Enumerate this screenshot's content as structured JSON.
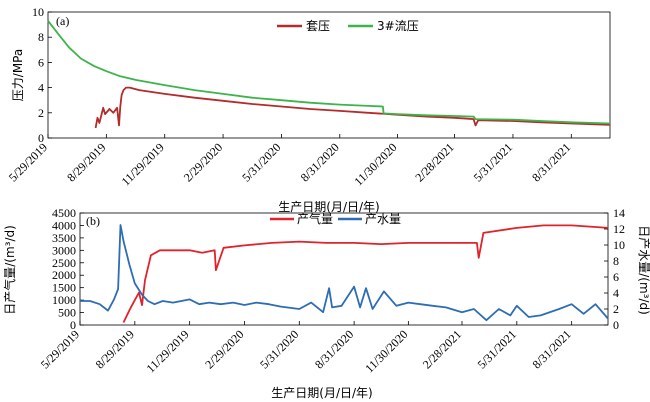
{
  "chart_data": [
    {
      "type": "line",
      "panel_label": "(a)",
      "xlabel": "生产日期(月/日/年)",
      "ylabel": "压力/MPa",
      "ylim": [
        0,
        10
      ],
      "yticks": [
        0,
        2,
        4,
        6,
        8,
        10
      ],
      "xlim": [
        "2019-05-29",
        "2021-10-31"
      ],
      "xticks": [
        "2019-05-29",
        "2019-08-29",
        "2019-11-29",
        "2020-02-29",
        "2020-05-31",
        "2020-08-31",
        "2020-11-30",
        "2021-02-28",
        "2021-05-31",
        "2021-08-31"
      ],
      "xtick_labels": [
        "5/29/2019",
        "8/29/2019",
        "11/29/2019",
        "2/29/2020",
        "5/31/2020",
        "8/31/2020",
        "11/30/2020",
        "2/28/2021",
        "5/31/2021",
        "8/31/2021"
      ],
      "legend_position": "top-center",
      "series": [
        {
          "name": "套压",
          "color": "#b52a2a",
          "x": [
            "2019-08-12",
            "2019-08-15",
            "2019-08-18",
            "2019-08-24",
            "2019-08-27",
            "2019-09-03",
            "2019-09-09",
            "2019-09-15",
            "2019-09-18",
            "2019-09-20",
            "2019-09-22",
            "2019-09-25",
            "2019-09-29",
            "2019-10-05",
            "2019-10-20",
            "2019-11-29",
            "2020-01-15",
            "2020-02-29",
            "2020-04-15",
            "2020-05-31",
            "2020-07-15",
            "2020-08-31",
            "2020-10-15",
            "2020-11-30",
            "2021-01-15",
            "2021-02-28",
            "2021-03-30",
            "2021-04-02",
            "2021-04-06",
            "2021-04-15",
            "2021-05-31",
            "2021-07-15",
            "2021-08-31",
            "2021-10-31"
          ],
          "y": [
            0.8,
            1.6,
            1.2,
            2.4,
            1.9,
            2.3,
            2.0,
            2.4,
            1.0,
            2.5,
            3.4,
            3.8,
            4.0,
            4.0,
            3.8,
            3.5,
            3.2,
            2.95,
            2.7,
            2.5,
            2.3,
            2.15,
            2.0,
            1.85,
            1.7,
            1.6,
            1.5,
            1.0,
            1.4,
            1.4,
            1.35,
            1.25,
            1.15,
            1.05
          ]
        },
        {
          "name": "3#流压",
          "color": "#3db44a",
          "x": [
            "2019-05-29",
            "2019-06-15",
            "2019-07-01",
            "2019-07-20",
            "2019-08-10",
            "2019-08-29",
            "2019-09-20",
            "2019-10-15",
            "2019-11-29",
            "2020-01-15",
            "2020-02-29",
            "2020-04-15",
            "2020-05-31",
            "2020-07-15",
            "2020-08-31",
            "2020-10-15",
            "2020-11-07",
            "2020-11-08",
            "2020-11-30",
            "2021-01-15",
            "2021-02-28",
            "2021-03-30",
            "2021-04-02",
            "2021-05-31",
            "2021-07-15",
            "2021-08-31",
            "2021-10-31"
          ],
          "y": [
            9.3,
            8.2,
            7.2,
            6.3,
            5.7,
            5.3,
            4.9,
            4.6,
            4.2,
            3.8,
            3.5,
            3.2,
            3.0,
            2.8,
            2.65,
            2.55,
            2.5,
            1.95,
            1.9,
            1.8,
            1.75,
            1.7,
            1.5,
            1.45,
            1.35,
            1.25,
            1.15
          ]
        }
      ]
    },
    {
      "type": "line",
      "panel_label": "(b)",
      "xlabel": "生产日期(月/日/年)",
      "ylabel_left": "日产气量/(m³/d)",
      "ylabel_right": "日产水量/(m³/d)",
      "ylim_left": [
        0,
        4500
      ],
      "yticks_left": [
        0,
        500,
        1000,
        1500,
        2000,
        2500,
        3000,
        3500,
        4000,
        4500
      ],
      "ylim_right": [
        0,
        14
      ],
      "yticks_right": [
        0,
        2,
        4,
        6,
        8,
        10,
        12,
        14
      ],
      "xlim": [
        "2019-05-29",
        "2021-10-31"
      ],
      "xticks": [
        "2019-05-29",
        "2019-08-29",
        "2019-11-29",
        "2020-02-29",
        "2020-05-31",
        "2020-08-31",
        "2020-11-30",
        "2021-02-28",
        "2021-05-31",
        "2021-08-31"
      ],
      "xtick_labels": [
        "5/29/2019",
        "8/29/2019",
        "11/29/2019",
        "2/29/2020",
        "5/31/2020",
        "8/31/2020",
        "11/30/2020",
        "2/28/2021",
        "5/31/2021",
        "8/31/2021"
      ],
      "legend_position": "top-center",
      "series": [
        {
          "name": "产气量",
          "color": "#e0232b",
          "axis": "left",
          "x": [
            "2019-08-10",
            "2019-08-20",
            "2019-08-29",
            "2019-09-05",
            "2019-09-10",
            "2019-09-15",
            "2019-09-25",
            "2019-10-10",
            "2019-11-29",
            "2019-12-20",
            "2020-01-10",
            "2020-01-12",
            "2020-01-25",
            "2020-02-29",
            "2020-04-15",
            "2020-05-31",
            "2020-07-15",
            "2020-08-31",
            "2020-10-15",
            "2020-11-30",
            "2021-01-15",
            "2021-02-28",
            "2021-03-25",
            "2021-03-28",
            "2021-04-05",
            "2021-05-31",
            "2021-07-15",
            "2021-08-31",
            "2021-10-31"
          ],
          "y": [
            100,
            600,
            1000,
            1300,
            800,
            1800,
            2800,
            3000,
            3000,
            2900,
            3000,
            2200,
            3100,
            3200,
            3300,
            3350,
            3300,
            3300,
            3250,
            3300,
            3300,
            3300,
            3300,
            2700,
            3700,
            3900,
            4000,
            4000,
            3900
          ]
        },
        {
          "name": "产水量",
          "color": "#2e6db5",
          "axis": "right",
          "x": [
            "2019-05-29",
            "2019-06-15",
            "2019-07-01",
            "2019-07-15",
            "2019-07-25",
            "2019-08-01",
            "2019-08-05",
            "2019-08-10",
            "2019-08-20",
            "2019-08-29",
            "2019-09-10",
            "2019-09-20",
            "2019-10-01",
            "2019-10-15",
            "2019-11-01",
            "2019-11-29",
            "2019-12-15",
            "2020-01-01",
            "2020-01-20",
            "2020-02-10",
            "2020-02-29",
            "2020-03-20",
            "2020-04-10",
            "2020-04-30",
            "2020-05-31",
            "2020-06-20",
            "2020-07-10",
            "2020-07-20",
            "2020-07-25",
            "2020-08-10",
            "2020-08-31",
            "2020-09-10",
            "2020-09-20",
            "2020-10-01",
            "2020-10-20",
            "2020-11-10",
            "2020-11-30",
            "2020-12-20",
            "2021-01-10",
            "2021-02-01",
            "2021-02-28",
            "2021-03-20",
            "2021-04-10",
            "2021-05-01",
            "2021-05-20",
            "2021-05-31",
            "2021-06-20",
            "2021-07-10",
            "2021-08-10",
            "2021-08-31",
            "2021-09-20",
            "2021-10-10",
            "2021-10-31"
          ],
          "y": [
            3.0,
            3.0,
            2.6,
            1.8,
            3.2,
            4.5,
            12.5,
            10.5,
            7.5,
            5.2,
            3.8,
            3.0,
            2.6,
            3.0,
            2.8,
            3.2,
            2.6,
            2.8,
            2.6,
            2.8,
            2.5,
            2.8,
            2.6,
            2.3,
            2.0,
            2.8,
            1.6,
            4.6,
            2.2,
            2.4,
            4.8,
            2.2,
            4.6,
            2.0,
            4.2,
            2.4,
            2.8,
            2.6,
            2.4,
            2.2,
            1.6,
            2.0,
            0.6,
            2.0,
            1.2,
            2.4,
            1.0,
            1.2,
            2.0,
            2.6,
            1.4,
            2.6,
            0.8
          ]
        }
      ]
    }
  ]
}
